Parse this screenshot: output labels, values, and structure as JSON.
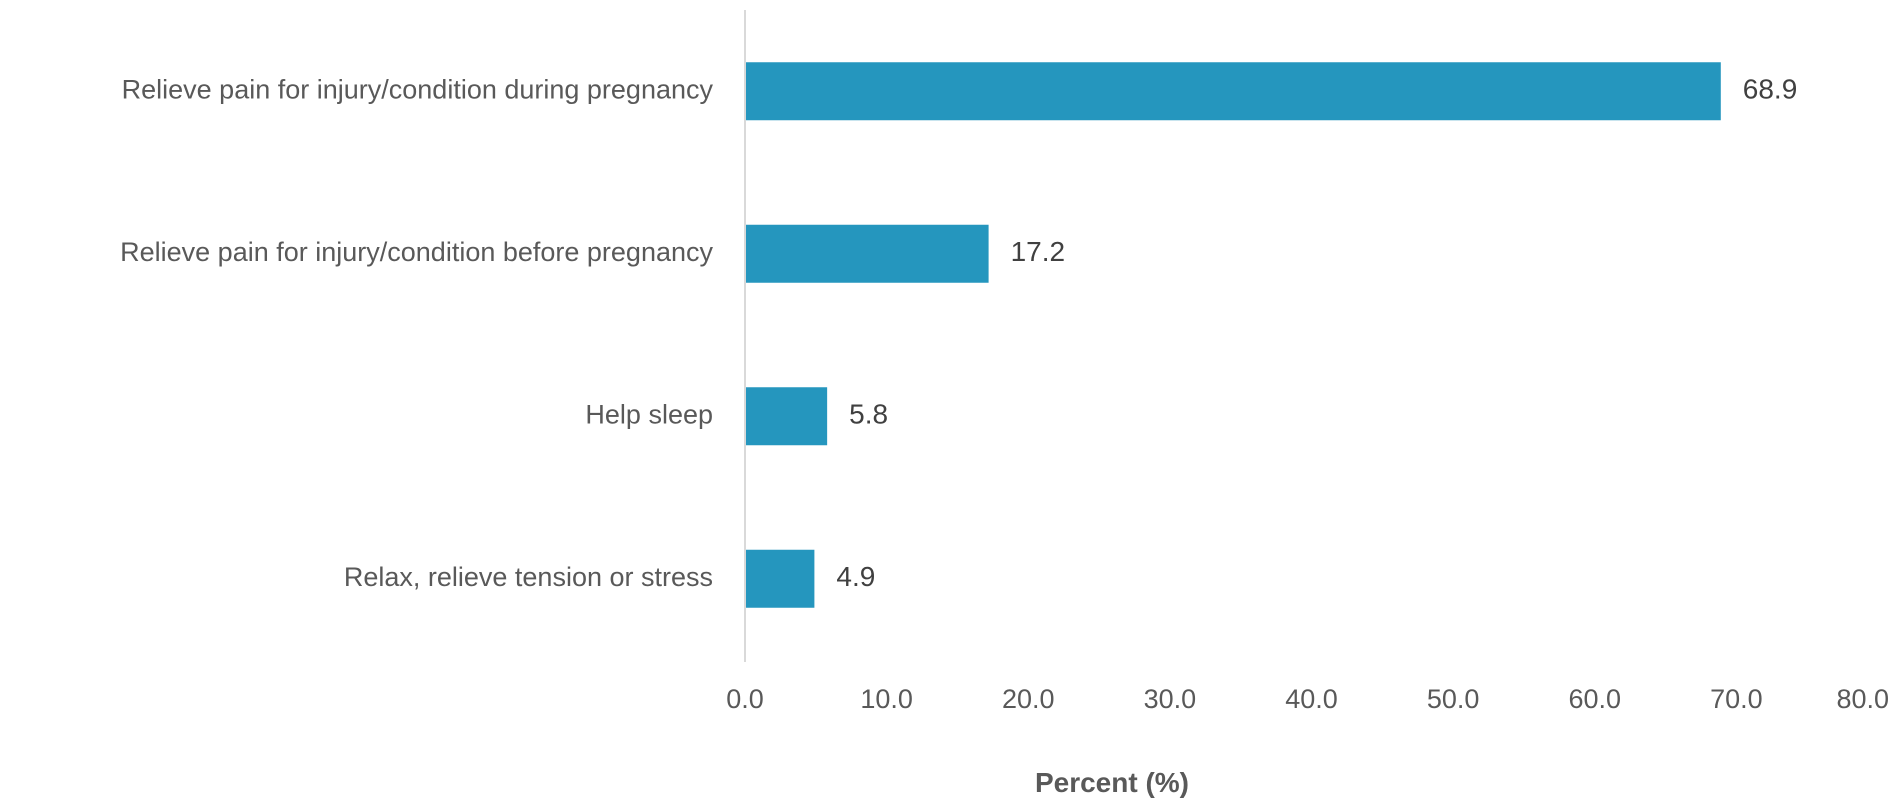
{
  "chart_data": {
    "type": "bar",
    "orientation": "horizontal",
    "title": "",
    "categories": [
      "Relieve pain for injury/condition during pregnancy",
      "Relieve pain for injury/condition before pregnancy",
      "Help sleep",
      "Relax, relieve tension or stress"
    ],
    "values": [
      68.9,
      17.2,
      5.8,
      4.9
    ],
    "data_labels": [
      "68.9",
      "17.2",
      "5.8",
      "4.9"
    ],
    "xlabel": "Percent (%)",
    "ylabel": "",
    "xlim": [
      0,
      80
    ],
    "ticks": [
      0,
      10,
      20,
      30,
      40,
      50,
      60,
      70,
      80
    ],
    "tick_labels": [
      "0.0",
      "10.0",
      "20.0",
      "30.0",
      "40.0",
      "50.0",
      "60.0",
      "70.0",
      "80.0"
    ],
    "grid": false,
    "legend": "none",
    "bar_color": "#2596BE",
    "axis_color": "#D9D9D9"
  }
}
